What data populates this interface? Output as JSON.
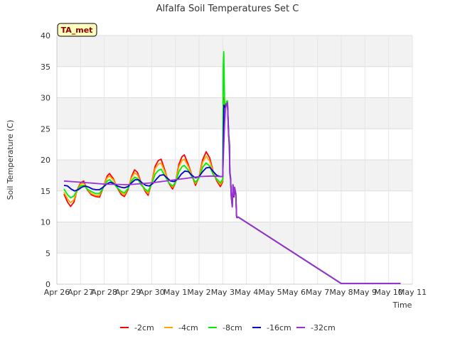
{
  "chart_data": {
    "type": "line",
    "title": "Alfalfa Soil Temperatures Set C",
    "xlabel": "Time",
    "ylabel": "Soil Temperature (C)",
    "badge": "TA_met",
    "ylim": [
      0,
      40
    ],
    "yticks": [
      0,
      5,
      10,
      15,
      20,
      25,
      30,
      35,
      40
    ],
    "xlim": [
      0,
      15
    ],
    "xticks": [
      {
        "pos": 0,
        "label": "Apr 26"
      },
      {
        "pos": 1,
        "label": "Apr 27"
      },
      {
        "pos": 2,
        "label": "Apr 28"
      },
      {
        "pos": 3,
        "label": "Apr 29"
      },
      {
        "pos": 4,
        "label": "Apr 30"
      },
      {
        "pos": 5,
        "label": "May 1"
      },
      {
        "pos": 6,
        "label": "May 2"
      },
      {
        "pos": 7,
        "label": "May 3"
      },
      {
        "pos": 8,
        "label": "May 4"
      },
      {
        "pos": 9,
        "label": "May 5"
      },
      {
        "pos": 10,
        "label": "May 6"
      },
      {
        "pos": 11,
        "label": "May 7"
      },
      {
        "pos": 12,
        "label": "May 8"
      },
      {
        "pos": 13,
        "label": "May 9"
      },
      {
        "pos": 14,
        "label": "May 10"
      },
      {
        "pos": 15,
        "label": "May 11"
      }
    ],
    "grid": true,
    "legend_position": "bottom",
    "series": [
      {
        "name": "-2cm",
        "color": "#ff0000",
        "points": [
          [
            0.3,
            14.5
          ],
          [
            0.45,
            13.2
          ],
          [
            0.58,
            12.5
          ],
          [
            0.72,
            13.2
          ],
          [
            0.86,
            15.2
          ],
          [
            1.0,
            16.3
          ],
          [
            1.13,
            16.6
          ],
          [
            1.28,
            15.2
          ],
          [
            1.45,
            14.4
          ],
          [
            1.62,
            14.1
          ],
          [
            1.8,
            14.0
          ],
          [
            1.95,
            15.5
          ],
          [
            2.12,
            17.4
          ],
          [
            2.22,
            17.8
          ],
          [
            2.38,
            17.0
          ],
          [
            2.55,
            15.5
          ],
          [
            2.72,
            14.4
          ],
          [
            2.85,
            14.1
          ],
          [
            3.0,
            15.2
          ],
          [
            3.15,
            17.3
          ],
          [
            3.28,
            18.4
          ],
          [
            3.4,
            18.0
          ],
          [
            3.55,
            16.4
          ],
          [
            3.72,
            15.0
          ],
          [
            3.85,
            14.3
          ],
          [
            4.0,
            16.3
          ],
          [
            4.15,
            19.0
          ],
          [
            4.28,
            19.9
          ],
          [
            4.4,
            20.1
          ],
          [
            4.55,
            18.4
          ],
          [
            4.72,
            16.3
          ],
          [
            4.88,
            15.3
          ],
          [
            5.0,
            16.3
          ],
          [
            5.15,
            19.3
          ],
          [
            5.28,
            20.5
          ],
          [
            5.38,
            20.8
          ],
          [
            5.55,
            19.2
          ],
          [
            5.72,
            17.3
          ],
          [
            5.85,
            15.9
          ],
          [
            6.0,
            17.3
          ],
          [
            6.15,
            20.0
          ],
          [
            6.3,
            21.3
          ],
          [
            6.45,
            20.3
          ],
          [
            6.6,
            18.0
          ],
          [
            6.75,
            16.6
          ],
          [
            6.9,
            15.7
          ],
          [
            7.0,
            16.5
          ],
          [
            7.05,
            30.0
          ],
          [
            7.1,
            28.5
          ],
          [
            7.15,
            29.0
          ],
          [
            7.2,
            29.2
          ],
          [
            7.25,
            24.0
          ],
          [
            7.28,
            22.5
          ],
          [
            7.3,
            18.0
          ],
          [
            7.33,
            17.0
          ],
          [
            7.36,
            14.0
          ],
          [
            7.4,
            12.5
          ],
          [
            7.43,
            16.0
          ],
          [
            7.47,
            14.0
          ],
          [
            7.5,
            15.5
          ],
          [
            7.55,
            14.5
          ],
          [
            7.58,
            11.0
          ],
          [
            7.6,
            10.7
          ],
          [
            7.65,
            10.8
          ],
          [
            12.0,
            0.1
          ],
          [
            14.5,
            0.1
          ]
        ]
      },
      {
        "name": "-4cm",
        "color": "#ffa500",
        "points": [
          [
            0.3,
            14.8
          ],
          [
            0.45,
            13.7
          ],
          [
            0.58,
            13.1
          ],
          [
            0.72,
            13.6
          ],
          [
            0.86,
            15.1
          ],
          [
            1.0,
            16.1
          ],
          [
            1.13,
            16.3
          ],
          [
            1.28,
            15.3
          ],
          [
            1.45,
            14.6
          ],
          [
            1.62,
            14.3
          ],
          [
            1.8,
            14.3
          ],
          [
            1.95,
            15.6
          ],
          [
            2.12,
            17.1
          ],
          [
            2.22,
            17.4
          ],
          [
            2.38,
            16.8
          ],
          [
            2.55,
            15.6
          ],
          [
            2.72,
            14.7
          ],
          [
            2.85,
            14.4
          ],
          [
            3.0,
            15.4
          ],
          [
            3.15,
            17.1
          ],
          [
            3.28,
            17.9
          ],
          [
            3.4,
            17.6
          ],
          [
            3.55,
            16.3
          ],
          [
            3.72,
            15.2
          ],
          [
            3.85,
            14.6
          ],
          [
            4.0,
            16.3
          ],
          [
            4.15,
            18.6
          ],
          [
            4.28,
            19.3
          ],
          [
            4.4,
            19.5
          ],
          [
            4.55,
            18.1
          ],
          [
            4.72,
            16.4
          ],
          [
            4.88,
            15.6
          ],
          [
            5.0,
            16.4
          ],
          [
            5.15,
            18.9
          ],
          [
            5.28,
            19.9
          ],
          [
            5.38,
            20.1
          ],
          [
            5.55,
            18.9
          ],
          [
            5.72,
            17.3
          ],
          [
            5.85,
            16.2
          ],
          [
            6.0,
            17.3
          ],
          [
            6.15,
            19.6
          ],
          [
            6.3,
            20.6
          ],
          [
            6.45,
            19.8
          ],
          [
            6.6,
            17.9
          ],
          [
            6.75,
            16.8
          ],
          [
            6.9,
            16.0
          ],
          [
            7.0,
            16.7
          ],
          [
            7.05,
            29.5
          ],
          [
            7.1,
            28.3
          ],
          [
            7.15,
            28.8
          ],
          [
            7.2,
            29.0
          ],
          [
            7.25,
            23.8
          ],
          [
            7.28,
            22.3
          ],
          [
            7.3,
            17.8
          ],
          [
            7.33,
            16.9
          ],
          [
            7.36,
            14.0
          ],
          [
            7.4,
            12.6
          ],
          [
            7.43,
            15.9
          ],
          [
            7.47,
            14.1
          ],
          [
            7.5,
            15.4
          ],
          [
            7.55,
            14.5
          ],
          [
            7.58,
            11.0
          ],
          [
            7.6,
            10.7
          ],
          [
            7.65,
            10.8
          ],
          [
            12.0,
            0.1
          ],
          [
            14.5,
            0.1
          ]
        ]
      },
      {
        "name": "-8cm",
        "color": "#00ee00",
        "points": [
          [
            0.3,
            15.3
          ],
          [
            0.45,
            14.4
          ],
          [
            0.58,
            13.9
          ],
          [
            0.72,
            14.2
          ],
          [
            0.86,
            15.2
          ],
          [
            1.0,
            15.8
          ],
          [
            1.13,
            15.9
          ],
          [
            1.28,
            15.3
          ],
          [
            1.45,
            14.9
          ],
          [
            1.62,
            14.6
          ],
          [
            1.8,
            14.6
          ],
          [
            1.95,
            15.5
          ],
          [
            2.12,
            16.6
          ],
          [
            2.22,
            16.8
          ],
          [
            2.38,
            16.3
          ],
          [
            2.55,
            15.5
          ],
          [
            2.72,
            14.9
          ],
          [
            2.85,
            14.7
          ],
          [
            3.0,
            15.4
          ],
          [
            3.15,
            16.6
          ],
          [
            3.28,
            17.2
          ],
          [
            3.4,
            17.0
          ],
          [
            3.55,
            16.0
          ],
          [
            3.72,
            15.3
          ],
          [
            3.85,
            14.9
          ],
          [
            4.0,
            16.1
          ],
          [
            4.15,
            17.7
          ],
          [
            4.28,
            18.3
          ],
          [
            4.4,
            18.5
          ],
          [
            4.55,
            17.5
          ],
          [
            4.72,
            16.3
          ],
          [
            4.88,
            15.8
          ],
          [
            5.0,
            16.3
          ],
          [
            5.15,
            18.1
          ],
          [
            5.28,
            18.9
          ],
          [
            5.38,
            19.1
          ],
          [
            5.55,
            18.3
          ],
          [
            5.72,
            17.1
          ],
          [
            5.85,
            16.4
          ],
          [
            6.0,
            17.1
          ],
          [
            6.15,
            18.8
          ],
          [
            6.3,
            19.5
          ],
          [
            6.45,
            19.0
          ],
          [
            6.6,
            17.6
          ],
          [
            6.75,
            16.9
          ],
          [
            6.9,
            16.3
          ],
          [
            7.0,
            16.9
          ],
          [
            7.02,
            35.0
          ],
          [
            7.04,
            37.4
          ],
          [
            7.06,
            34.0
          ],
          [
            7.08,
            28.6
          ],
          [
            7.12,
            28.4
          ],
          [
            7.16,
            29.4
          ],
          [
            7.2,
            29.5
          ],
          [
            7.25,
            24.0
          ],
          [
            7.28,
            22.6
          ],
          [
            7.3,
            18.0
          ],
          [
            7.33,
            17.1
          ],
          [
            7.36,
            14.2
          ],
          [
            7.4,
            12.7
          ],
          [
            7.43,
            16.0
          ],
          [
            7.47,
            14.2
          ],
          [
            7.5,
            15.5
          ],
          [
            7.55,
            14.6
          ],
          [
            7.58,
            11.0
          ],
          [
            7.6,
            10.7
          ],
          [
            7.65,
            10.8
          ],
          [
            12.0,
            0.1
          ],
          [
            14.5,
            0.1
          ]
        ]
      },
      {
        "name": "-16cm",
        "color": "#0000cd",
        "points": [
          [
            0.3,
            15.9
          ],
          [
            0.45,
            15.8
          ],
          [
            0.6,
            15.3
          ],
          [
            0.75,
            15.0
          ],
          [
            0.9,
            15.2
          ],
          [
            1.05,
            15.6
          ],
          [
            1.2,
            15.8
          ],
          [
            1.35,
            15.6
          ],
          [
            1.5,
            15.3
          ],
          [
            1.65,
            15.2
          ],
          [
            1.8,
            15.2
          ],
          [
            1.95,
            15.6
          ],
          [
            2.1,
            16.1
          ],
          [
            2.25,
            16.4
          ],
          [
            2.4,
            16.2
          ],
          [
            2.55,
            15.8
          ],
          [
            2.7,
            15.6
          ],
          [
            2.85,
            15.5
          ],
          [
            3.0,
            15.7
          ],
          [
            3.15,
            16.3
          ],
          [
            3.3,
            16.8
          ],
          [
            3.45,
            16.8
          ],
          [
            3.6,
            16.3
          ],
          [
            3.75,
            15.9
          ],
          [
            3.9,
            15.8
          ],
          [
            4.05,
            16.2
          ],
          [
            4.2,
            16.9
          ],
          [
            4.35,
            17.5
          ],
          [
            4.5,
            17.6
          ],
          [
            4.65,
            17.1
          ],
          [
            4.8,
            16.6
          ],
          [
            4.95,
            16.5
          ],
          [
            5.1,
            16.9
          ],
          [
            5.25,
            17.7
          ],
          [
            5.4,
            18.2
          ],
          [
            5.55,
            18.1
          ],
          [
            5.7,
            17.5
          ],
          [
            5.85,
            17.1
          ],
          [
            6.0,
            17.3
          ],
          [
            6.15,
            18.1
          ],
          [
            6.3,
            18.7
          ],
          [
            6.45,
            18.8
          ],
          [
            6.6,
            18.1
          ],
          [
            6.75,
            17.5
          ],
          [
            6.9,
            17.3
          ],
          [
            7.0,
            17.3
          ],
          [
            7.05,
            28.8
          ],
          [
            7.1,
            28.4
          ],
          [
            7.15,
            29.0
          ],
          [
            7.2,
            29.0
          ],
          [
            7.25,
            23.8
          ],
          [
            7.28,
            22.4
          ],
          [
            7.3,
            17.9
          ],
          [
            7.33,
            17.0
          ],
          [
            7.36,
            14.1
          ],
          [
            7.4,
            12.6
          ],
          [
            7.43,
            15.9
          ],
          [
            7.47,
            14.1
          ],
          [
            7.5,
            15.4
          ],
          [
            7.55,
            14.5
          ],
          [
            7.58,
            11.0
          ],
          [
            7.6,
            10.7
          ],
          [
            7.65,
            10.8
          ],
          [
            12.0,
            0.1
          ],
          [
            14.5,
            0.1
          ]
        ]
      },
      {
        "name": "-32cm",
        "color": "#9b30d9",
        "points": [
          [
            0.3,
            16.6
          ],
          [
            1.0,
            16.4
          ],
          [
            2.0,
            16.1
          ],
          [
            3.0,
            16.0
          ],
          [
            4.0,
            16.3
          ],
          [
            5.0,
            16.8
          ],
          [
            6.0,
            17.3
          ],
          [
            6.5,
            17.4
          ],
          [
            7.0,
            17.3
          ],
          [
            7.04,
            22.0
          ],
          [
            7.08,
            26.0
          ],
          [
            7.12,
            28.4
          ],
          [
            7.16,
            29.0
          ],
          [
            7.2,
            29.2
          ],
          [
            7.24,
            24.5
          ],
          [
            7.27,
            22.5
          ],
          [
            7.3,
            18.2
          ],
          [
            7.33,
            17.2
          ],
          [
            7.36,
            14.2
          ],
          [
            7.4,
            12.4
          ],
          [
            7.43,
            16.0
          ],
          [
            7.47,
            14.2
          ],
          [
            7.5,
            15.6
          ],
          [
            7.55,
            14.6
          ],
          [
            7.58,
            11.0
          ],
          [
            7.6,
            10.7
          ],
          [
            7.65,
            10.8
          ],
          [
            12.0,
            0.1
          ],
          [
            14.5,
            0.1
          ]
        ]
      }
    ]
  }
}
